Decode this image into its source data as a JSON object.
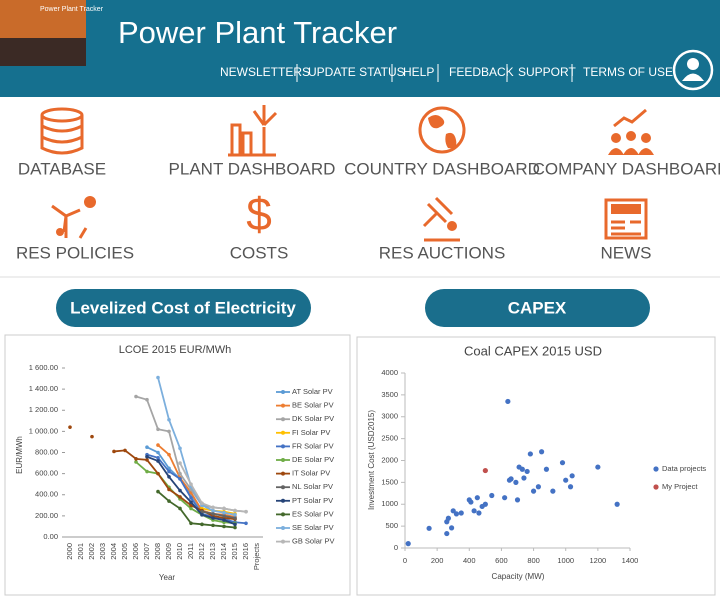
{
  "header": {
    "logo_text": "Power Plant Tracker",
    "title": "Power Plant Tracker",
    "nav": [
      "NEWSLETTERS",
      "UPDATE STATUS",
      "HELP",
      "FEEDBACK",
      "SUPPORT",
      "TERMS OF USE"
    ]
  },
  "tiles": [
    "DATABASE",
    "PLANT DASHBOARD",
    "COUNTRY DASHBOARD",
    "COMPANY DASHBOARD",
    "RES POLICIES",
    "COSTS",
    "RES AUCTIONS",
    "NEWS"
  ],
  "buttons": [
    "Levelized Cost of Electricity",
    "CAPEX"
  ],
  "chart_data": [
    {
      "type": "line",
      "title": "LCOE 2015 EUR/MWh",
      "x_label": "Year",
      "y_label": "EUR/MWh",
      "categories": [
        "2000",
        "2001",
        "2002",
        "2003",
        "2004",
        "2005",
        "2006",
        "2007",
        "2008",
        "2009",
        "2010",
        "2011",
        "2012",
        "2013",
        "2014",
        "2015",
        "2016",
        "Projects"
      ],
      "ylim": [
        0,
        1600
      ],
      "yticks": [
        {
          "value": 0,
          "label": "0.00"
        },
        {
          "value": 200,
          "label": "200.00"
        },
        {
          "value": 400,
          "label": "400.00"
        },
        {
          "value": 600,
          "label": "600.00"
        },
        {
          "value": 800,
          "label": "800.00"
        },
        {
          "value": 1000,
          "label": "1 000.00"
        },
        {
          "value": 1200,
          "label": "1 200.00"
        },
        {
          "value": 1400,
          "label": "1 400.00"
        },
        {
          "value": 1600,
          "label": "1 600.00"
        }
      ],
      "legend": "right",
      "series": [
        {
          "name": "AT Solar PV",
          "color": "#5b9bd5",
          "values": [
            null,
            null,
            null,
            null,
            null,
            null,
            null,
            850,
            800,
            650,
            550,
            400,
            250,
            220,
            200,
            170,
            null,
            null
          ]
        },
        {
          "name": "BE Solar PV",
          "color": "#ed7d31",
          "values": [
            null,
            null,
            null,
            null,
            null,
            null,
            null,
            null,
            870,
            780,
            560,
            420,
            250,
            220,
            210,
            190,
            null,
            null
          ]
        },
        {
          "name": "DK Solar PV",
          "color": "#a5a5a5",
          "values": [
            null,
            null,
            null,
            null,
            null,
            null,
            1330,
            1300,
            1020,
            1000,
            600,
            450,
            300,
            280,
            270,
            250,
            240,
            null
          ]
        },
        {
          "name": "FI Solar PV",
          "color": "#ffc000",
          "values": [
            null,
            null,
            null,
            null,
            null,
            null,
            null,
            null,
            null,
            null,
            null,
            null,
            270,
            250,
            240,
            220,
            null,
            null
          ]
        },
        {
          "name": "FR Solar PV",
          "color": "#4472c4",
          "values": [
            null,
            null,
            null,
            null,
            null,
            null,
            null,
            780,
            750,
            620,
            550,
            370,
            220,
            190,
            170,
            140,
            130,
            null
          ]
        },
        {
          "name": "DE Solar PV",
          "color": "#70ad47",
          "values": [
            null,
            null,
            null,
            null,
            null,
            null,
            710,
            620,
            600,
            470,
            360,
            270,
            210,
            160,
            140,
            130,
            null,
            null
          ]
        },
        {
          "name": "IT Solar PV",
          "color": "#9e480e",
          "values": [
            1040,
            null,
            950,
            null,
            810,
            820,
            740,
            730,
            600,
            450,
            380,
            300,
            250,
            200,
            180,
            170,
            null,
            null
          ]
        },
        {
          "name": "NL Solar PV",
          "color": "#636363",
          "values": [
            null,
            null,
            null,
            null,
            null,
            null,
            null,
            null,
            null,
            null,
            null,
            null,
            240,
            220,
            200,
            180,
            null,
            null
          ]
        },
        {
          "name": "PT Solar PV",
          "color": "#264478",
          "values": [
            null,
            null,
            null,
            null,
            null,
            null,
            null,
            760,
            720,
            570,
            440,
            330,
            210,
            180,
            160,
            120,
            null,
            null
          ]
        },
        {
          "name": "ES Solar PV",
          "color": "#43682b",
          "values": [
            null,
            null,
            null,
            null,
            null,
            null,
            null,
            null,
            430,
            340,
            270,
            130,
            120,
            110,
            100,
            90,
            null,
            null
          ]
        },
        {
          "name": "SE Solar PV",
          "color": "#7cafdd",
          "values": [
            null,
            null,
            null,
            null,
            null,
            null,
            null,
            null,
            1510,
            1110,
            840,
            480,
            300,
            250,
            230,
            210,
            null,
            null
          ]
        },
        {
          "name": "GB Solar PV",
          "color": "#b7b7b7",
          "values": [
            null,
            null,
            null,
            null,
            null,
            null,
            null,
            null,
            null,
            null,
            700,
            500,
            320,
            280,
            270,
            250,
            240,
            null
          ]
        }
      ]
    },
    {
      "type": "scatter",
      "title": "Coal CAPEX 2015 USD",
      "x_label": "Capacity (MW)",
      "y_label": "Investment Cost (USD2015)",
      "xlim": [
        0,
        1400
      ],
      "xticks": [
        0,
        200,
        400,
        600,
        800,
        1000,
        1200,
        1400
      ],
      "ylim": [
        0,
        4000
      ],
      "yticks": [
        0,
        500,
        1000,
        1500,
        2000,
        2500,
        3000,
        3500,
        4000
      ],
      "legend": "right",
      "series": [
        {
          "name": "Data projects",
          "color": "#4472c4",
          "x": [
            20,
            150,
            260,
            260,
            270,
            290,
            300,
            320,
            350,
            400,
            410,
            430,
            450,
            460,
            480,
            500,
            540,
            620,
            640,
            650,
            660,
            690,
            700,
            710,
            730,
            740,
            760,
            780,
            800,
            830,
            850,
            880,
            920,
            980,
            1000,
            1030,
            1040,
            1200,
            1320
          ],
          "y": [
            100,
            450,
            330,
            600,
            680,
            460,
            850,
            780,
            800,
            1100,
            1050,
            850,
            1150,
            800,
            950,
            1000,
            1200,
            1150,
            3350,
            1550,
            1580,
            1500,
            1100,
            1850,
            1800,
            1600,
            1750,
            2150,
            1300,
            1400,
            2200,
            1800,
            1300,
            1950,
            1550,
            1400,
            1650,
            1850,
            1000
          ]
        },
        {
          "name": "My Project",
          "color": "#c0504d",
          "x": [
            500
          ],
          "y": [
            1770
          ]
        }
      ]
    }
  ]
}
